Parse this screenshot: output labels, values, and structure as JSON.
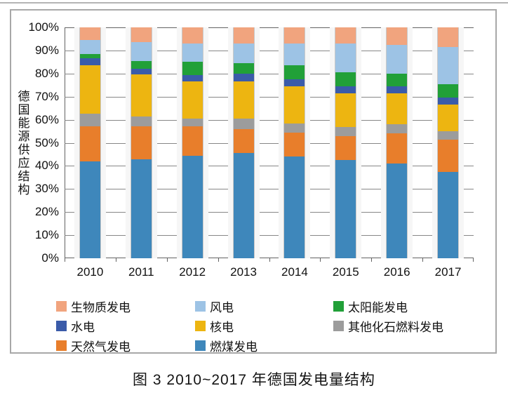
{
  "figure": {
    "caption": "图 3  2010~2017 年德国发电量结构",
    "y_axis_title": "德国能源供应结构"
  },
  "chart_data": {
    "type": "bar",
    "stacked": true,
    "percent_stacked": true,
    "unit": "%",
    "title": "",
    "xlabel": "",
    "ylabel": "德国能源供应结构",
    "ylim": [
      0,
      100
    ],
    "grid": true,
    "yticks": [
      "0%",
      "10%",
      "20%",
      "30%",
      "40%",
      "50%",
      "60%",
      "70%",
      "80%",
      "90%",
      "100%"
    ],
    "categories": [
      "2010",
      "2011",
      "2012",
      "2013",
      "2014",
      "2015",
      "2016",
      "2017"
    ],
    "series": [
      {
        "name": "燃煤发电",
        "color": "#3E87BB",
        "values": [
          42,
          43,
          44.5,
          45.5,
          44,
          42.5,
          41,
          37.5
        ]
      },
      {
        "name": "天然气发电",
        "color": "#E87E2B",
        "values": [
          15,
          14,
          12.5,
          10.5,
          10.5,
          10.5,
          13,
          14
        ]
      },
      {
        "name": "其他化石燃料发电",
        "color": "#9C9C9C",
        "values": [
          5.5,
          4.5,
          3.5,
          4.5,
          4,
          4,
          4,
          3.5
        ]
      },
      {
        "name": "核电",
        "color": "#EDB511",
        "values": [
          21,
          18,
          16,
          16,
          16,
          14.5,
          13.5,
          11.5
        ]
      },
      {
        "name": "水电",
        "color": "#3A5BA9",
        "values": [
          3,
          2.5,
          3,
          3.5,
          3,
          3,
          3,
          3
        ]
      },
      {
        "name": "太阳能发电",
        "color": "#21A038",
        "values": [
          2,
          3.5,
          5.5,
          4.5,
          6,
          6,
          5.5,
          6
        ]
      },
      {
        "name": "风电",
        "color": "#9DC3E5",
        "values": [
          6,
          8,
          8,
          8.5,
          9.5,
          12.5,
          12.5,
          16
        ]
      },
      {
        "name": "生物质发电",
        "color": "#F1A47E",
        "values": [
          5.5,
          6.5,
          7,
          7,
          7,
          7,
          7.5,
          8.5
        ]
      }
    ],
    "legend": {
      "position": "bottom",
      "columns": 3,
      "order": [
        "生物质发电",
        "风电",
        "太阳能发电",
        "水电",
        "核电",
        "其他化石燃料发电",
        "天然气发电",
        "燃煤发电"
      ]
    }
  }
}
